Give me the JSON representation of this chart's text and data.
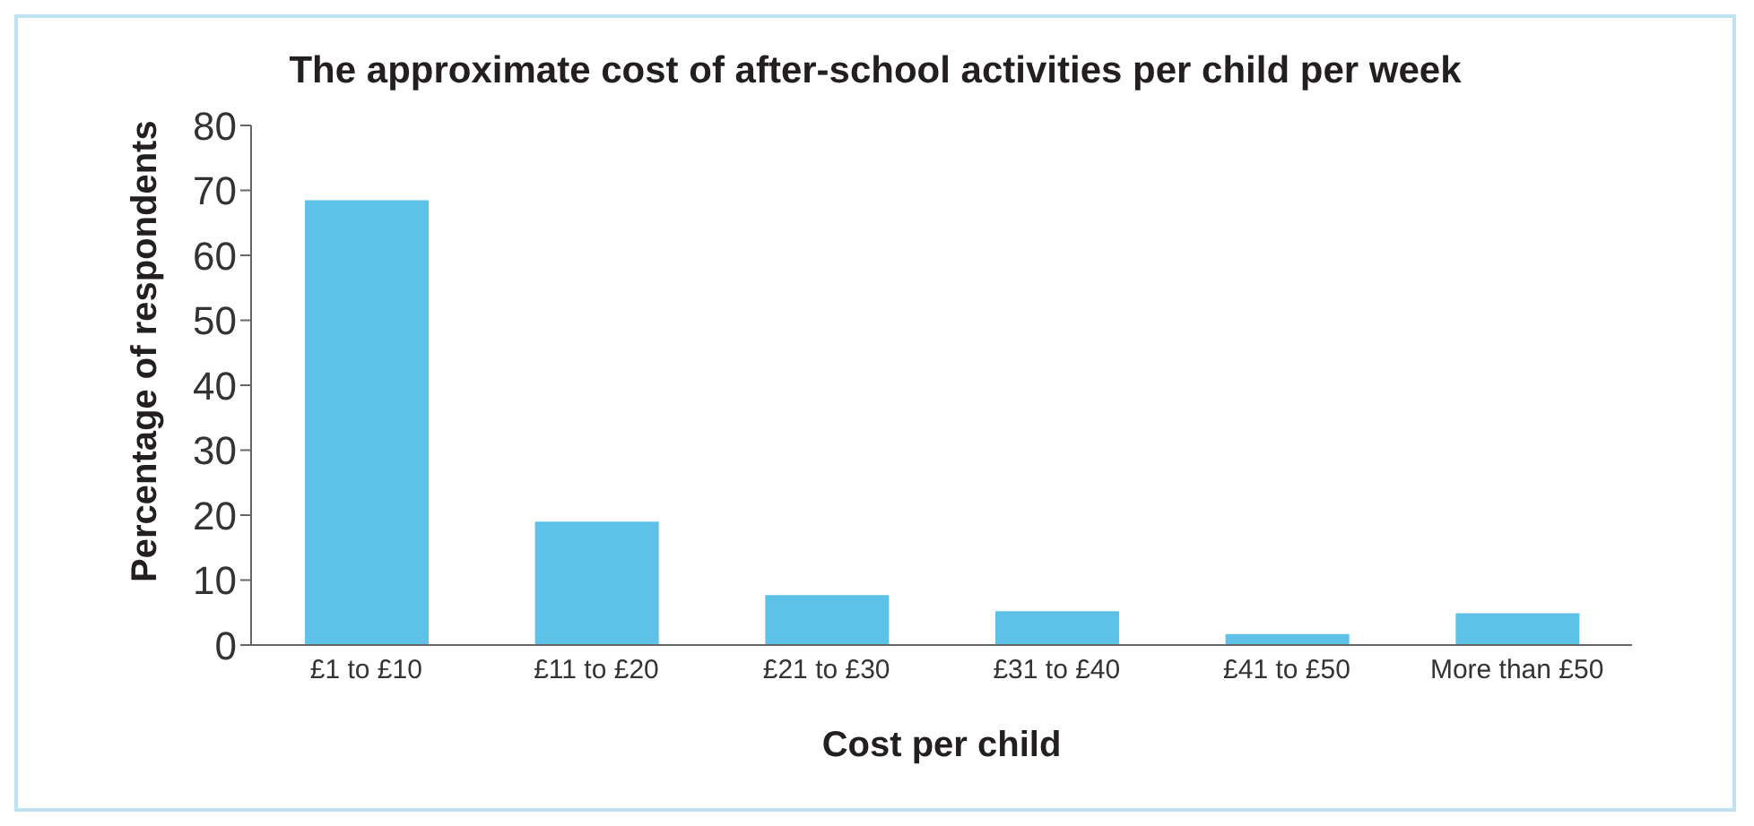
{
  "chart_data": {
    "type": "bar",
    "title": "The approximate cost of after-school activities per child per week",
    "xlabel": "Cost per child",
    "ylabel": "Percentage of respondents",
    "categories": [
      "£1 to £10",
      "£11 to £20",
      "£21 to £30",
      "£31 to £40",
      "£41 to £50",
      "More than £50"
    ],
    "values": [
      68.5,
      19,
      7.7,
      5.2,
      1.7,
      4.9
    ],
    "color": "#5ec2e8",
    "ylim": [
      0,
      80
    ],
    "yticks": [
      0,
      10,
      20,
      30,
      40,
      50,
      60,
      70,
      80
    ],
    "grid": false,
    "legend": false
  }
}
